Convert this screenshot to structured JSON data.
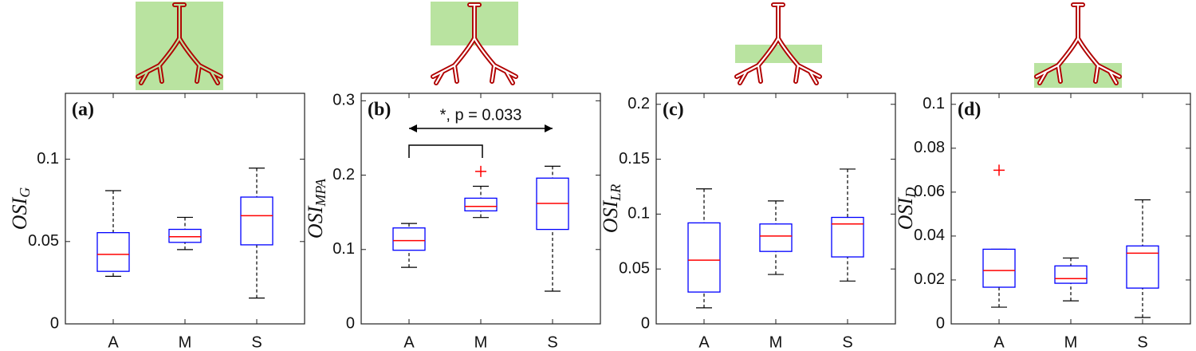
{
  "chart_data": [
    {
      "type": "box",
      "panel_label": "(a)",
      "ylabel": "OSI",
      "ylabel_subscript": "G",
      "categories": [
        "A",
        "M",
        "S"
      ],
      "ylim": [
        0,
        0.14
      ],
      "yticks": [
        0,
        0.05,
        0.1
      ],
      "box_color": "#0000ff",
      "median_color": "#ff0000",
      "whisker_color": "#000000",
      "outlier_color": "#ff0000",
      "boxes": [
        {
          "low": 0.0289,
          "q1": 0.0319,
          "median": 0.0422,
          "q3": 0.0554,
          "high": 0.0809
        },
        {
          "low": 0.0451,
          "q1": 0.0495,
          "median": 0.0529,
          "q3": 0.0574,
          "high": 0.0647
        },
        {
          "low": 0.0157,
          "q1": 0.048,
          "median": 0.0657,
          "q3": 0.077,
          "high": 0.0946
        }
      ]
    },
    {
      "type": "box",
      "panel_label": "(b)",
      "ylabel": "OSI",
      "ylabel_subscript": "MPA",
      "categories": [
        "A",
        "M",
        "S"
      ],
      "ylim": [
        0,
        0.31
      ],
      "yticks": [
        0,
        0.1,
        0.2,
        0.3
      ],
      "box_color": "#0000ff",
      "median_color": "#ff0000",
      "whisker_color": "#000000",
      "outlier_color": "#ff0000",
      "annotation": "*, p = 0.033",
      "boxes": [
        {
          "low": 0.076,
          "q1": 0.099,
          "median": 0.112,
          "q3": 0.129,
          "high": 0.135
        },
        {
          "low": 0.143,
          "q1": 0.152,
          "median": 0.158,
          "q3": 0.169,
          "high": 0.185,
          "outliers": [
            0.205
          ]
        },
        {
          "low": 0.044,
          "q1": 0.127,
          "median": 0.162,
          "q3": 0.196,
          "high": 0.212
        }
      ]
    },
    {
      "type": "box",
      "panel_label": "(c)",
      "ylabel": "OSI",
      "ylabel_subscript": "LR",
      "categories": [
        "A",
        "M",
        "S"
      ],
      "ylim": [
        0,
        0.21
      ],
      "yticks": [
        0,
        0.05,
        0.1,
        0.15,
        0.2
      ],
      "box_color": "#0000ff",
      "median_color": "#ff0000",
      "whisker_color": "#000000",
      "outlier_color": "#ff0000",
      "boxes": [
        {
          "low": 0.0146,
          "q1": 0.029,
          "median": 0.058,
          "q3": 0.092,
          "high": 0.123
        },
        {
          "low": 0.045,
          "q1": 0.066,
          "median": 0.08,
          "q3": 0.091,
          "high": 0.112
        },
        {
          "low": 0.039,
          "q1": 0.061,
          "median": 0.091,
          "q3": 0.097,
          "high": 0.141
        }
      ]
    },
    {
      "type": "box",
      "panel_label": "(d)",
      "ylabel": "OSI",
      "ylabel_subscript": "D",
      "categories": [
        "A",
        "M",
        "S"
      ],
      "ylim": [
        0,
        0.105
      ],
      "yticks": [
        0,
        0.02,
        0.04,
        0.06,
        0.08,
        0.1
      ],
      "box_color": "#0000ff",
      "median_color": "#ff0000",
      "whisker_color": "#000000",
      "outlier_color": "#ff0000",
      "boxes": [
        {
          "low": 0.0076,
          "q1": 0.0167,
          "median": 0.0243,
          "q3": 0.034,
          "high": 0.034,
          "outliers": [
            0.07
          ]
        },
        {
          "low": 0.0105,
          "q1": 0.0185,
          "median": 0.0206,
          "q3": 0.0264,
          "high": 0.03
        },
        {
          "low": 0.0029,
          "q1": 0.0163,
          "median": 0.0322,
          "q3": 0.0355,
          "high": 0.0565
        }
      ]
    }
  ]
}
